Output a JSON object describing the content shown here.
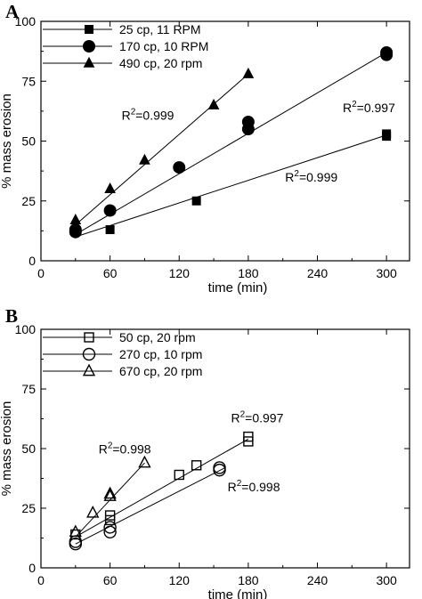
{
  "chart_data": [
    {
      "type": "scatter",
      "panel_label": "A",
      "xlabel": "time (min)",
      "ylabel": "% mass erosion",
      "xlim": [
        0,
        320
      ],
      "ylim": [
        0,
        100
      ],
      "xticks": [
        0,
        60,
        120,
        180,
        240,
        300
      ],
      "yticks": [
        0,
        25,
        50,
        75,
        100
      ],
      "legend_position": "top-left",
      "series": [
        {
          "name": "25 cp, 11 RPM",
          "marker": "square",
          "filled": true,
          "x": [
            60,
            135,
            300,
            300
          ],
          "y": [
            13,
            25,
            52,
            53
          ],
          "fit": [
            [
              30,
              10
            ],
            [
              300,
              52.5
            ]
          ]
        },
        {
          "name": "170 cp, 10 RPM",
          "marker": "circle",
          "filled": true,
          "x": [
            30,
            30,
            60,
            120,
            180,
            180,
            300,
            300
          ],
          "y": [
            12,
            13,
            21,
            39,
            55,
            58,
            86,
            87
          ],
          "fit": [
            [
              30,
              11
            ],
            [
              300,
              87
            ]
          ]
        },
        {
          "name": "490 cp, 20 rpm",
          "marker": "triangle",
          "filled": true,
          "x": [
            30,
            60,
            90,
            150,
            180
          ],
          "y": [
            17,
            30,
            42,
            65,
            78
          ],
          "fit": [
            [
              30,
              15
            ],
            [
              180,
              78
            ]
          ]
        }
      ],
      "annotations": [
        {
          "text": "R",
          "sup": "2",
          "rest": "=0.999",
          "x": 70,
          "y": 59
        },
        {
          "text": "R",
          "sup": "2",
          "rest": "=0.997",
          "x": 262,
          "y": 62
        },
        {
          "text": "R",
          "sup": "2",
          "rest": "=0.999",
          "x": 212,
          "y": 33
        }
      ]
    },
    {
      "type": "scatter",
      "panel_label": "B",
      "xlabel": "time (min)",
      "ylabel": "% mass erosion",
      "xlim": [
        0,
        320
      ],
      "ylim": [
        0,
        100
      ],
      "xticks": [
        0,
        60,
        120,
        180,
        240,
        300
      ],
      "yticks": [
        0,
        25,
        50,
        75,
        100
      ],
      "legend_position": "top-left",
      "series": [
        {
          "name": "50 cp, 20 rpm",
          "marker": "square",
          "filled": false,
          "x": [
            30,
            60,
            60,
            120,
            135,
            180,
            180
          ],
          "y": [
            14,
            20,
            22,
            39,
            43,
            53,
            55
          ],
          "fit": [
            [
              30,
              13
            ],
            [
              180,
              54
            ]
          ]
        },
        {
          "name": "270 cp, 10 rpm",
          "marker": "circle",
          "filled": false,
          "x": [
            30,
            30,
            60,
            60,
            155,
            155
          ],
          "y": [
            10,
            11,
            15,
            17,
            41,
            42
          ],
          "fit": [
            [
              30,
              10
            ],
            [
              160,
              42
            ]
          ]
        },
        {
          "name": "670 cp, 20 rpm",
          "marker": "triangle",
          "filled": false,
          "x": [
            30,
            45,
            60,
            60,
            90
          ],
          "y": [
            15,
            23,
            30,
            31,
            44
          ],
          "fit": [
            [
              30,
              13
            ],
            [
              90,
              44
            ]
          ]
        }
      ],
      "annotations": [
        {
          "text": "R",
          "sup": "2",
          "rest": "=0.998",
          "x": 50,
          "y": 48
        },
        {
          "text": "R",
          "sup": "2",
          "rest": "=0.997",
          "x": 165,
          "y": 61
        },
        {
          "text": "R",
          "sup": "2",
          "rest": "=0.998",
          "x": 162,
          "y": 32
        }
      ]
    }
  ]
}
